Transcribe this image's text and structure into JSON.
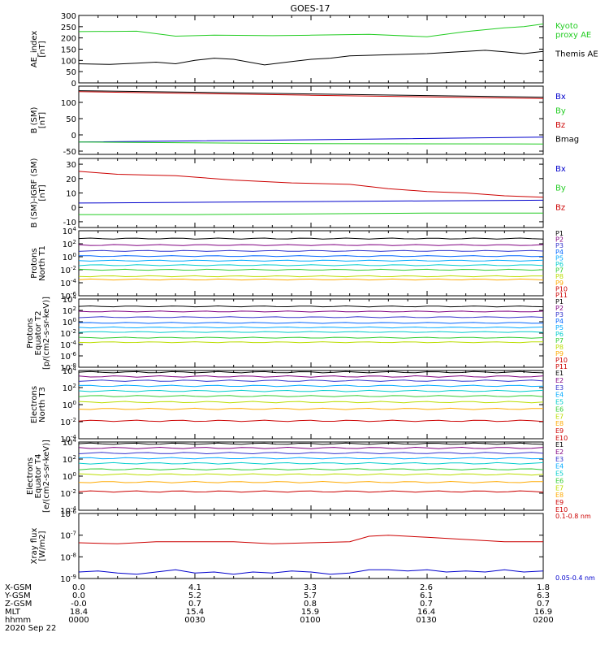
{
  "title": "GOES-17",
  "chart_data": [
    {
      "type": "line",
      "name": "ae-index",
      "ylabel": "AE_index\n[nT]",
      "ylim": [
        0,
        300
      ],
      "log": false,
      "ticks": [
        "0",
        "50",
        "100",
        "150",
        "200",
        "250",
        "300"
      ],
      "tickvals": [
        0,
        50,
        100,
        150,
        200,
        250,
        300
      ],
      "series": [
        {
          "name": "Kyoto\nproxy AE",
          "color": "#22cc22",
          "label_lines": [
            "Kyoto",
            "proxy AE"
          ],
          "x": [
            0,
            15,
            25,
            35,
            50,
            60,
            75,
            90,
            100,
            110,
            115,
            120
          ],
          "y": [
            228,
            230,
            208,
            212,
            210,
            212,
            216,
            205,
            228,
            245,
            250,
            262
          ]
        },
        {
          "name": "Themis AE",
          "color": "#000000",
          "label_lines": [
            "Themis AE"
          ],
          "x": [
            0,
            8,
            15,
            20,
            25,
            30,
            35,
            40,
            48,
            55,
            60,
            65,
            70,
            80,
            90,
            100,
            105,
            110,
            115,
            120
          ],
          "y": [
            85,
            82,
            88,
            92,
            85,
            100,
            110,
            105,
            80,
            95,
            105,
            110,
            120,
            125,
            130,
            140,
            145,
            138,
            130,
            140
          ]
        }
      ]
    },
    {
      "type": "line",
      "name": "b-sm",
      "ylabel": "B (SM)\n[nT]",
      "ylim": [
        -60,
        150
      ],
      "log": false,
      "ticks": [
        "-50",
        "0",
        "50",
        "100"
      ],
      "tickvals": [
        -50,
        0,
        50,
        100
      ],
      "series": [
        {
          "name": "Bx",
          "color": "#0000cc",
          "label_lines": [
            "Bx"
          ],
          "x": [
            0,
            60,
            120
          ],
          "y": [
            -22,
            -15,
            -7
          ]
        },
        {
          "name": "By",
          "color": "#22cc22",
          "label_lines": [
            "By"
          ],
          "x": [
            0,
            60,
            120
          ],
          "y": [
            -22,
            -27,
            -28
          ]
        },
        {
          "name": "Bz",
          "color": "#cc0000",
          "label_lines": [
            "Bz"
          ],
          "x": [
            0,
            60,
            120
          ],
          "y": [
            133,
            122,
            112
          ]
        },
        {
          "name": "Bmag",
          "color": "#000000",
          "label_lines": [
            "Bmag"
          ],
          "x": [
            0,
            60,
            120
          ],
          "y": [
            136,
            126,
            116
          ]
        }
      ]
    },
    {
      "type": "line",
      "name": "b-sm-igrf",
      "ylabel": "B (SM)-IGRF (SM)\n[nT]",
      "ylim": [
        -14,
        34
      ],
      "log": false,
      "ticks": [
        "-10",
        "0",
        "10",
        "20",
        "30"
      ],
      "tickvals": [
        -10,
        0,
        10,
        20,
        30
      ],
      "series": [
        {
          "name": "Bx",
          "color": "#0000cc",
          "label_lines": [
            "Bx"
          ],
          "x": [
            0,
            30,
            60,
            90,
            120
          ],
          "y": [
            3,
            3.5,
            4,
            4.5,
            5
          ]
        },
        {
          "name": "By",
          "color": "#22cc22",
          "label_lines": [
            "By"
          ],
          "x": [
            0,
            30,
            60,
            90,
            120
          ],
          "y": [
            -5,
            -5,
            -4.5,
            -4,
            -4
          ]
        },
        {
          "name": "Bz",
          "color": "#cc0000",
          "label_lines": [
            "Bz"
          ],
          "x": [
            0,
            10,
            25,
            40,
            55,
            70,
            80,
            90,
            100,
            110,
            120
          ],
          "y": [
            25,
            23,
            22,
            19,
            17,
            16,
            13,
            11,
            10,
            8,
            7
          ]
        }
      ]
    },
    {
      "type": "line",
      "name": "protons-north-t1",
      "ylabel": "Protons\nNorth T1",
      "ylim": [
        -6,
        4
      ],
      "log": true,
      "ticks": [
        "10-6",
        "10-4",
        "10-2",
        "100",
        "102",
        "104"
      ],
      "tickvals": [
        -6,
        -4,
        -2,
        0,
        2,
        4
      ],
      "series": [
        {
          "name": "P1",
          "color": "#000000",
          "label_lines": [
            "P1"
          ],
          "y": [
            2.8
          ]
        },
        {
          "name": "P2",
          "color": "#800080",
          "label_lines": [
            "P2"
          ],
          "y": [
            1.8
          ]
        },
        {
          "name": "P3",
          "color": "#3333cc",
          "label_lines": [
            "P3"
          ],
          "y": [
            0.9
          ]
        },
        {
          "name": "P4",
          "color": "#0066ff",
          "label_lines": [
            "P4"
          ],
          "y": [
            0.1
          ]
        },
        {
          "name": "P5",
          "color": "#00aaff",
          "label_lines": [
            "P5"
          ],
          "y": [
            -0.6
          ]
        },
        {
          "name": "P6",
          "color": "#00cccc",
          "label_lines": [
            "P6"
          ],
          "y": [
            -1.3
          ]
        },
        {
          "name": "P7",
          "color": "#33cc33",
          "label_lines": [
            "P7"
          ],
          "y": [
            -2.0
          ]
        },
        {
          "name": "P8",
          "color": "#bbdd00",
          "label_lines": [
            "P8"
          ],
          "y": [
            -3.0
          ]
        },
        {
          "name": "P9",
          "color": "#ffaa00",
          "label_lines": [
            "P9"
          ],
          "y": [
            -3.5
          ]
        },
        {
          "name": "P10",
          "color": "#cc0000",
          "label_lines": [
            "P10"
          ],
          "y": []
        },
        {
          "name": "P11",
          "color": "#cc0000",
          "label_lines": [
            "P11"
          ],
          "y": []
        }
      ]
    },
    {
      "type": "line",
      "name": "protons-equator-t2",
      "ylabel": "Protons\nEquator T2\n[p/(cm2-s-sr-keV)]",
      "ylim": [
        -8,
        4
      ],
      "log": true,
      "ticks": [
        "10-8",
        "10-6",
        "10-4",
        "10-2",
        "100",
        "102",
        "104"
      ],
      "tickvals": [
        -8,
        -6,
        -4,
        -2,
        0,
        2,
        4
      ],
      "series": [
        {
          "name": "P1",
          "color": "#000000",
          "label_lines": [
            "P1"
          ],
          "y": [
            2.7
          ]
        },
        {
          "name": "P2",
          "color": "#800080",
          "label_lines": [
            "P2"
          ],
          "y": [
            1.8
          ]
        },
        {
          "name": "P3",
          "color": "#3333cc",
          "label_lines": [
            "P3"
          ],
          "y": [
            0.8
          ]
        },
        {
          "name": "P4",
          "color": "#0066ff",
          "label_lines": [
            "P4"
          ],
          "y": [
            -0.2
          ]
        },
        {
          "name": "P5",
          "color": "#00aaff",
          "label_lines": [
            "P5"
          ],
          "y": [
            -1.0
          ]
        },
        {
          "name": "P6",
          "color": "#00cccc",
          "label_lines": [
            "P6"
          ],
          "y": [
            -1.8
          ]
        },
        {
          "name": "P7",
          "color": "#33cc33",
          "label_lines": [
            "P7"
          ],
          "y": [
            -2.8
          ]
        },
        {
          "name": "P8",
          "color": "#bbdd00",
          "label_lines": [
            "P8"
          ],
          "y": [
            -3.6
          ]
        },
        {
          "name": "P9",
          "color": "#ffaa00",
          "label_lines": [
            "P9"
          ],
          "y": []
        },
        {
          "name": "P10",
          "color": "#cc0000",
          "label_lines": [
            "P10"
          ],
          "y": []
        },
        {
          "name": "P11",
          "color": "#cc0000",
          "label_lines": [
            "P11"
          ],
          "y": []
        }
      ]
    },
    {
      "type": "line",
      "name": "electrons-north-t3",
      "ylabel": "Electrons\nNorth T3",
      "ylim": [
        -4,
        4
      ],
      "log": true,
      "ticks": [
        "10-4",
        "10-2",
        "100",
        "102",
        "104"
      ],
      "tickvals": [
        -4,
        -2,
        0,
        2,
        4
      ],
      "series": [
        {
          "name": "E1",
          "color": "#000000",
          "label_lines": [
            "E1"
          ],
          "y": [
            3.8
          ]
        },
        {
          "name": "E2",
          "color": "#800080",
          "label_lines": [
            "E2"
          ],
          "y": [
            3.3
          ]
        },
        {
          "name": "E3",
          "color": "#3333cc",
          "label_lines": [
            "E3"
          ],
          "y": [
            2.8
          ]
        },
        {
          "name": "E4",
          "color": "#00aaff",
          "label_lines": [
            "E4"
          ],
          "y": [
            2.2
          ]
        },
        {
          "name": "E5",
          "color": "#00cccc",
          "label_lines": [
            "E5"
          ],
          "y": [
            1.6
          ]
        },
        {
          "name": "E6",
          "color": "#33cc33",
          "label_lines": [
            "E6"
          ],
          "y": [
            1.0
          ]
        },
        {
          "name": "E7",
          "color": "#bbdd00",
          "label_lines": [
            "E7"
          ],
          "y": [
            0.3
          ]
        },
        {
          "name": "E8",
          "color": "#ffaa00",
          "label_lines": [
            "E8"
          ],
          "y": [
            -0.5
          ]
        },
        {
          "name": "E9",
          "color": "#cc0000",
          "label_lines": [
            "E9"
          ],
          "y": [
            -1.9
          ]
        },
        {
          "name": "E10",
          "color": "#cc0000",
          "label_lines": [
            "E10"
          ],
          "y": []
        }
      ]
    },
    {
      "type": "line",
      "name": "electrons-equator-t4",
      "ylabel": "Electrons\nEquator T4\n[e/(cm2-s-sr-keV)]",
      "ylim": [
        -4,
        4
      ],
      "log": true,
      "ticks": [
        "10-4",
        "10-2",
        "100",
        "102",
        "104"
      ],
      "tickvals": [
        -4,
        -2,
        0,
        2,
        4
      ],
      "series": [
        {
          "name": "E1",
          "color": "#000000",
          "label_lines": [
            "E1"
          ],
          "y": [
            3.8
          ]
        },
        {
          "name": "E2",
          "color": "#800080",
          "label_lines": [
            "E2"
          ],
          "y": [
            3.3
          ]
        },
        {
          "name": "E3",
          "color": "#3333cc",
          "label_lines": [
            "E3"
          ],
          "y": [
            2.7
          ]
        },
        {
          "name": "E4",
          "color": "#00aaff",
          "label_lines": [
            "E4"
          ],
          "y": [
            2.1
          ]
        },
        {
          "name": "E5",
          "color": "#00cccc",
          "label_lines": [
            "E5"
          ],
          "y": [
            1.5
          ]
        },
        {
          "name": "E6",
          "color": "#33cc33",
          "label_lines": [
            "E6"
          ],
          "y": [
            0.8
          ]
        },
        {
          "name": "E7",
          "color": "#bbdd00",
          "label_lines": [
            "E7"
          ],
          "y": [
            0.2
          ]
        },
        {
          "name": "E8",
          "color": "#ffaa00",
          "label_lines": [
            "E8"
          ],
          "y": [
            -0.7
          ]
        },
        {
          "name": "E9",
          "color": "#cc0000",
          "label_lines": [
            "E9"
          ],
          "y": [
            -1.8
          ]
        },
        {
          "name": "E10",
          "color": "#cc0000",
          "label_lines": [
            "E10"
          ],
          "y": []
        }
      ]
    },
    {
      "type": "line",
      "name": "xray-flux",
      "ylabel": "Xray flux\n[W/m2]",
      "ylim": [
        -9,
        -6
      ],
      "log": true,
      "ticks": [
        "10-9",
        "10-8",
        "10-7",
        "10-6"
      ],
      "tickvals": [
        -9,
        -8,
        -7,
        -6
      ],
      "series": [
        {
          "name": "0.1-0.8 nm",
          "color": "#cc0000",
          "label_lines": [
            "0.1-0.8 nm"
          ],
          "x": [
            0,
            10,
            20,
            30,
            40,
            50,
            60,
            70,
            75,
            80,
            90,
            100,
            110,
            120
          ],
          "y": [
            -7.35,
            -7.4,
            -7.3,
            -7.3,
            -7.3,
            -7.4,
            -7.35,
            -7.3,
            -7.05,
            -7.0,
            -7.1,
            -7.2,
            -7.3,
            -7.3
          ]
        },
        {
          "name": "0.05-0.4 nm",
          "color": "#0000cc",
          "label_lines": [
            "0.05-0.4 nm"
          ],
          "x": [
            0,
            5,
            10,
            15,
            20,
            25,
            30,
            35,
            40,
            45,
            50,
            55,
            60,
            65,
            70,
            75,
            80,
            85,
            90,
            95,
            100,
            105,
            110,
            115,
            120
          ],
          "y": [
            -8.7,
            -8.65,
            -8.75,
            -8.8,
            -8.7,
            -8.6,
            -8.75,
            -8.7,
            -8.8,
            -8.7,
            -8.75,
            -8.65,
            -8.7,
            -8.8,
            -8.75,
            -8.6,
            -8.6,
            -8.65,
            -8.6,
            -8.7,
            -8.65,
            -8.7,
            -8.6,
            -8.7,
            -8.65
          ]
        }
      ]
    }
  ],
  "xaxis": {
    "rows": [
      {
        "label": "X-GSM",
        "values": [
          "0.0",
          "4.1",
          "3.3",
          "2.6",
          "1.8"
        ]
      },
      {
        "label": "Y-GSM",
        "values": [
          "0.0",
          "5.2",
          "5.7",
          "6.1",
          "6.3"
        ]
      },
      {
        "label": "Z-GSM",
        "values": [
          "-0.0",
          "0.7",
          "0.8",
          "0.7",
          "0.7"
        ]
      },
      {
        "label": "MLT",
        "values": [
          "18.4",
          "15.4",
          "15.9",
          "16.4",
          "16.9"
        ]
      },
      {
        "label": "hhmm",
        "values": [
          "0000",
          "0030",
          "0100",
          "0130",
          "0200"
        ]
      }
    ],
    "date": "2020 Sep 22",
    "xlim": [
      0,
      120
    ]
  }
}
